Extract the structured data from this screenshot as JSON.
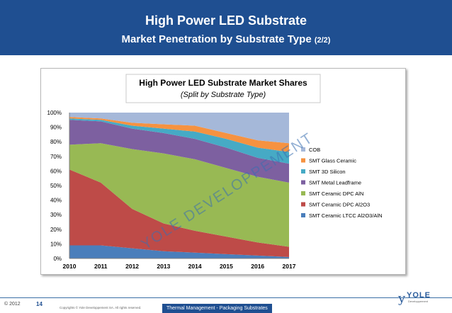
{
  "header": {
    "title": "High Power LED Substrate",
    "subtitle": "Market Penetration by Substrate Type",
    "subtitle_part": "(2/2)"
  },
  "watermark": "YOLE DEVELOPPEMENT",
  "footer": {
    "copyright": "© 2012",
    "page": "14",
    "small_print": "Copyrights © Yole Developpement SA. All rights reserved.",
    "section": "Thermal Management - Packaging Substrates"
  },
  "logo": {
    "mark": "y",
    "name": "YOLE",
    "tagline": "Developpement"
  },
  "chart_data": {
    "type": "area",
    "stacked": "percent",
    "title": "High Power LED Substrate Market Shares",
    "subtitle": "(Split by Substrate Type)",
    "xlabel": "",
    "ylabel": "",
    "x": [
      "2010",
      "2011",
      "2012",
      "2013",
      "2014",
      "2015",
      "2016",
      "2017"
    ],
    "ylim": [
      0,
      100
    ],
    "yticks": [
      "0%",
      "10%",
      "20%",
      "30%",
      "40%",
      "50%",
      "60%",
      "70%",
      "80%",
      "90%",
      "100%"
    ],
    "grid": false,
    "legend_position": "right",
    "series": [
      {
        "name": "SMT Ceramic LTCC Al2O3/AlN",
        "color": "#4a7ebb",
        "values": [
          9,
          9,
          7,
          5,
          4,
          3,
          2,
          1
        ]
      },
      {
        "name": "SMT Ceramic DPC Al2O3",
        "color": "#be4b48",
        "values": [
          52,
          43,
          27,
          19,
          15,
          12,
          9,
          7
        ]
      },
      {
        "name": "SMT Ceramic DPC AlN",
        "color": "#98b954",
        "values": [
          17,
          27,
          41,
          48,
          49,
          47,
          45,
          44
        ]
      },
      {
        "name": "SMT Metal Leadframe",
        "color": "#7d60a0",
        "values": [
          17,
          15,
          14,
          14,
          14,
          14,
          13,
          13
        ]
      },
      {
        "name": "SMT 3D Silicon",
        "color": "#46aac5",
        "values": [
          1,
          1,
          2,
          3,
          5,
          6,
          7,
          8
        ]
      },
      {
        "name": "SMT Glass Ceramic",
        "color": "#f69240",
        "values": [
          1,
          1,
          2,
          3,
          4,
          4,
          5,
          6
        ]
      },
      {
        "name": "COB",
        "color": "#a5b8d9",
        "values": [
          3,
          4,
          7,
          8,
          9,
          14,
          19,
          21
        ]
      }
    ]
  }
}
